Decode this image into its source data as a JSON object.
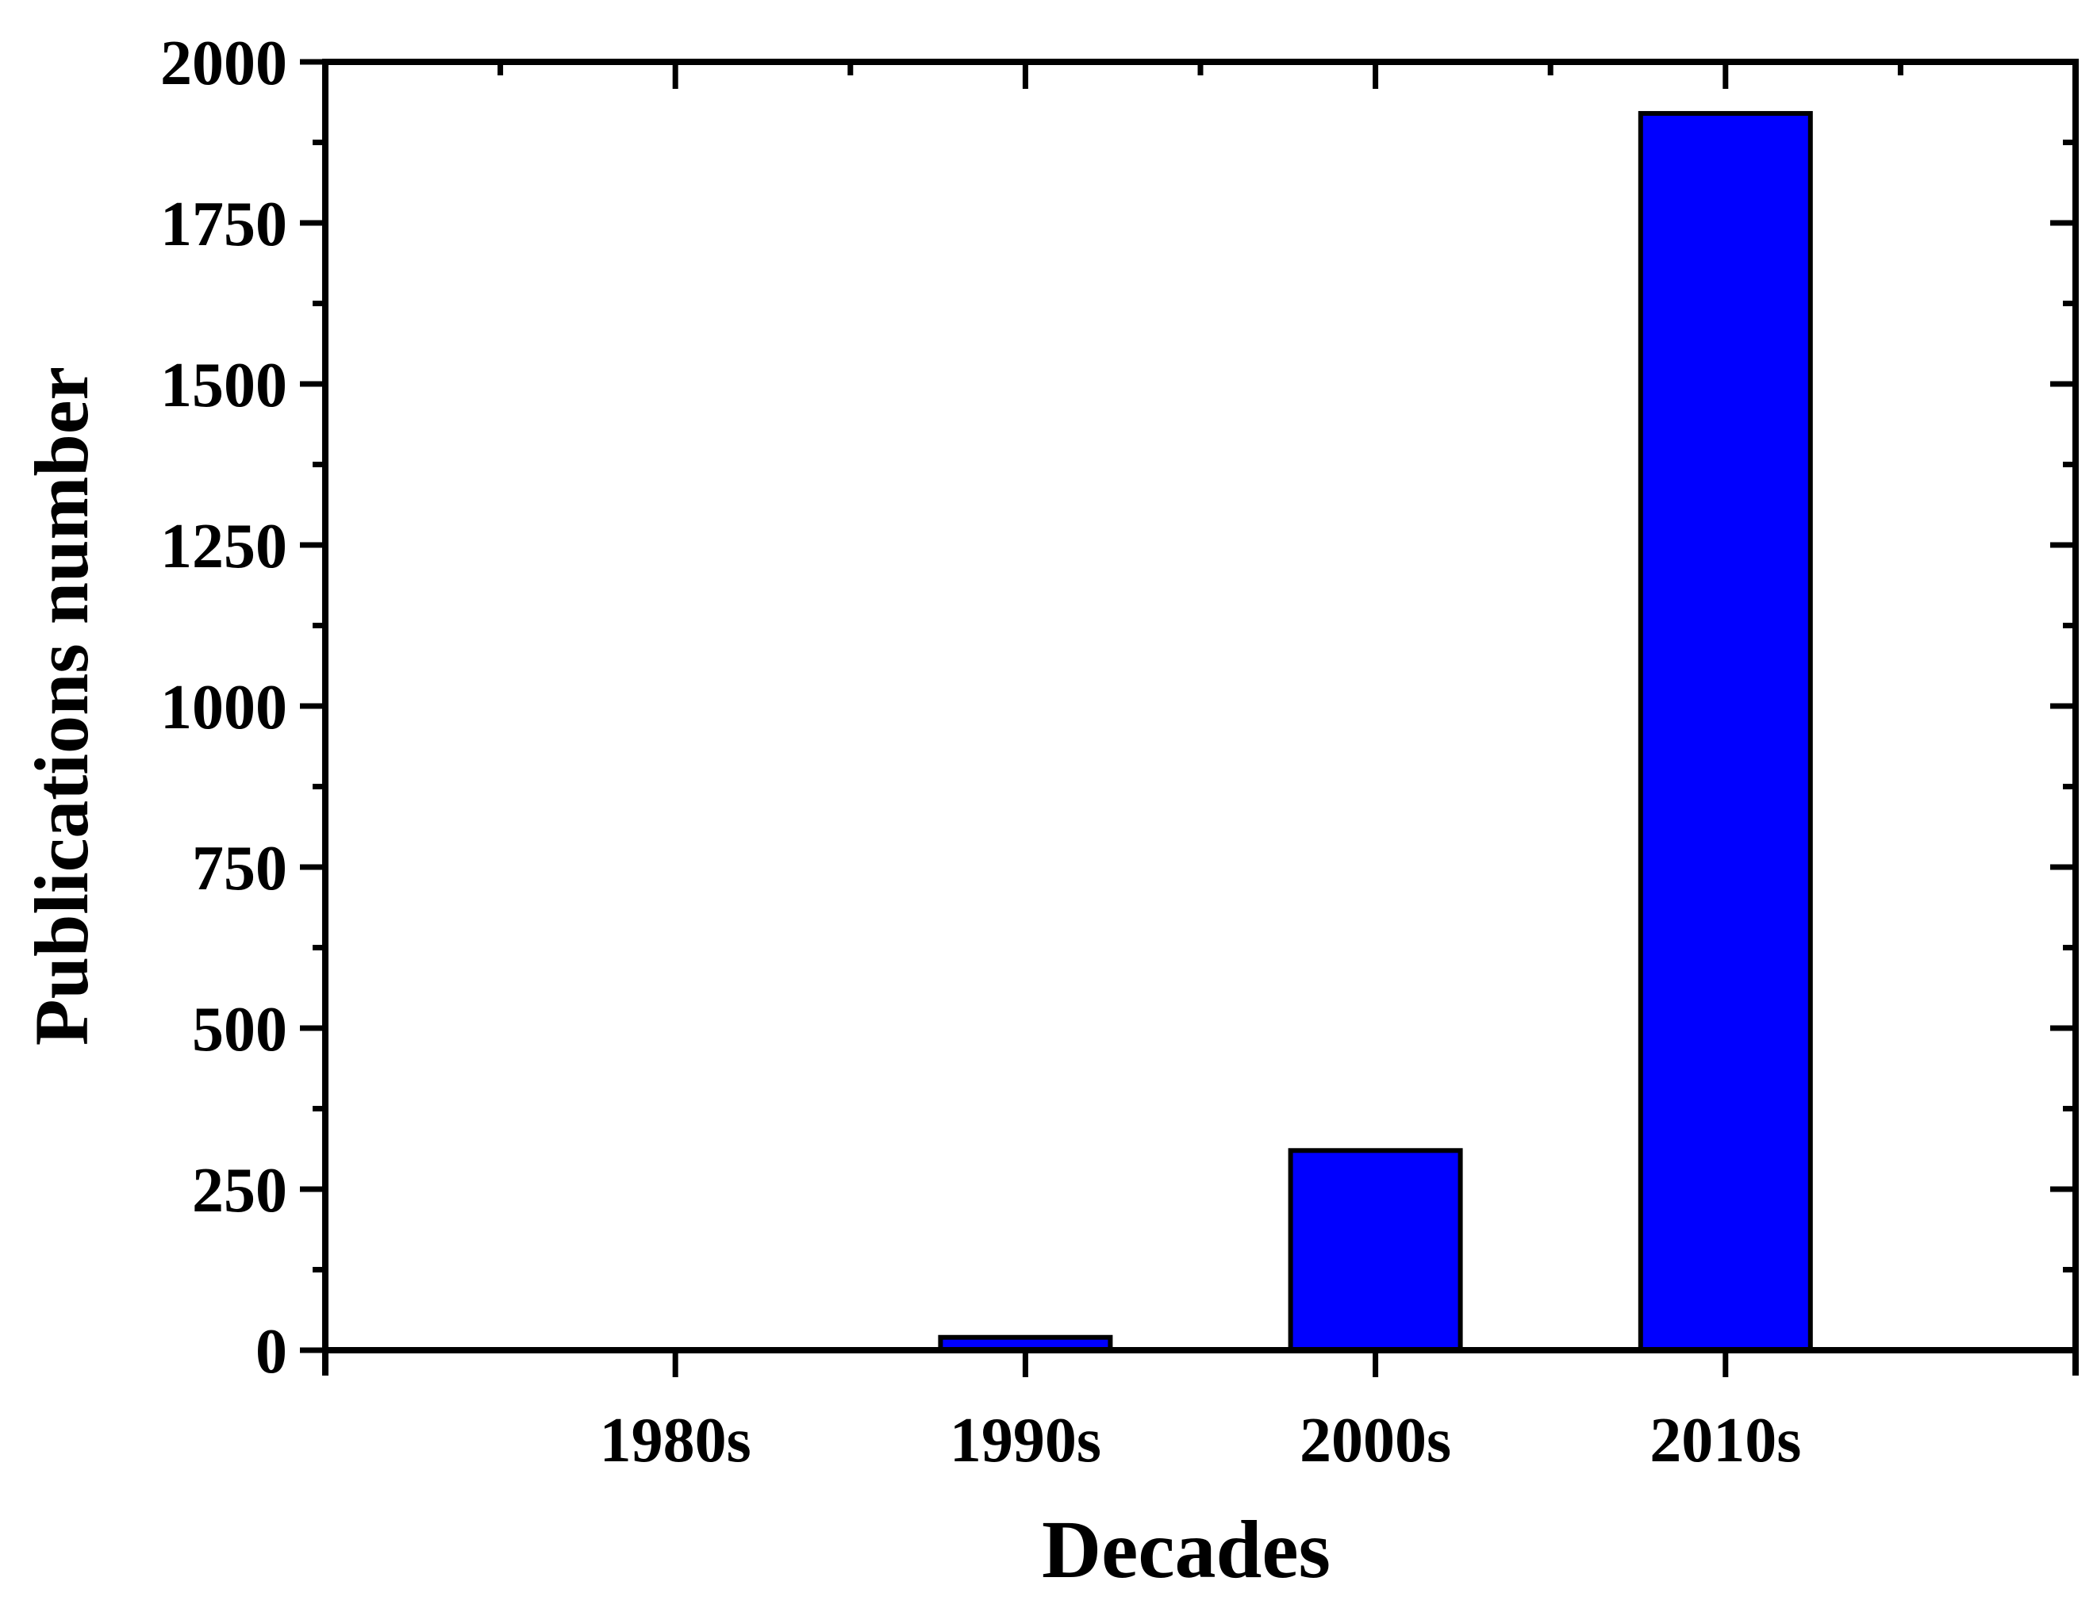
{
  "figure": {
    "background_color": "#ffffff",
    "axis_color": "#000000",
    "text_color": "#000000"
  },
  "chart_data": {
    "type": "bar",
    "title": "",
    "categories": [
      "1980s",
      "1990s",
      "2000s",
      "2010s"
    ],
    "values": [
      0,
      20,
      310,
      1920
    ],
    "xlabel": "Decades",
    "ylabel": "Publications number",
    "ylim": [
      0,
      2000
    ],
    "y_major_ticks": [
      0,
      250,
      500,
      750,
      1000,
      1250,
      1500,
      1750,
      2000
    ],
    "y_minor_tick_step": 125,
    "bar_fill_color": "#0000ff",
    "bar_border_color": "#000000",
    "grid": false,
    "legend": false,
    "frame": "box-with-mirrored-ticks"
  }
}
